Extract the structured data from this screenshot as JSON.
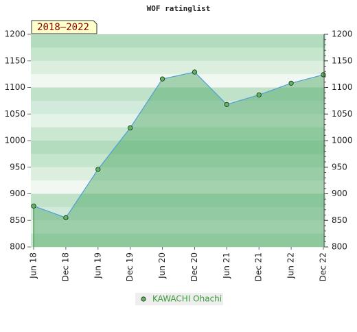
{
  "chart_data": {
    "type": "area",
    "title": "WOF ratinglist",
    "annotation": "2018–2022",
    "categories": [
      "Jun 18",
      "Dec 18",
      "Jun 19",
      "Dec 19",
      "Jun 20",
      "Dec 20",
      "Jun 21",
      "Dec 21",
      "Jun 22",
      "Dec 22"
    ],
    "series": [
      {
        "name": "KAWACHI Ohachi",
        "color": "#4f9fd8",
        "marker_color": "#5cb85c",
        "values": [
          877,
          855,
          946,
          1024,
          1116,
          1129,
          1068,
          1086,
          1108,
          1124
        ]
      }
    ],
    "ylim": [
      800,
      1200
    ],
    "yticks": [
      800,
      850,
      900,
      950,
      1000,
      1050,
      1100,
      1150,
      1200
    ],
    "y2lim": [
      800,
      1200
    ],
    "y2ticks": [
      800,
      850,
      900,
      950,
      1000,
      1050,
      1100,
      1150,
      1200
    ],
    "legend": "bottom"
  }
}
